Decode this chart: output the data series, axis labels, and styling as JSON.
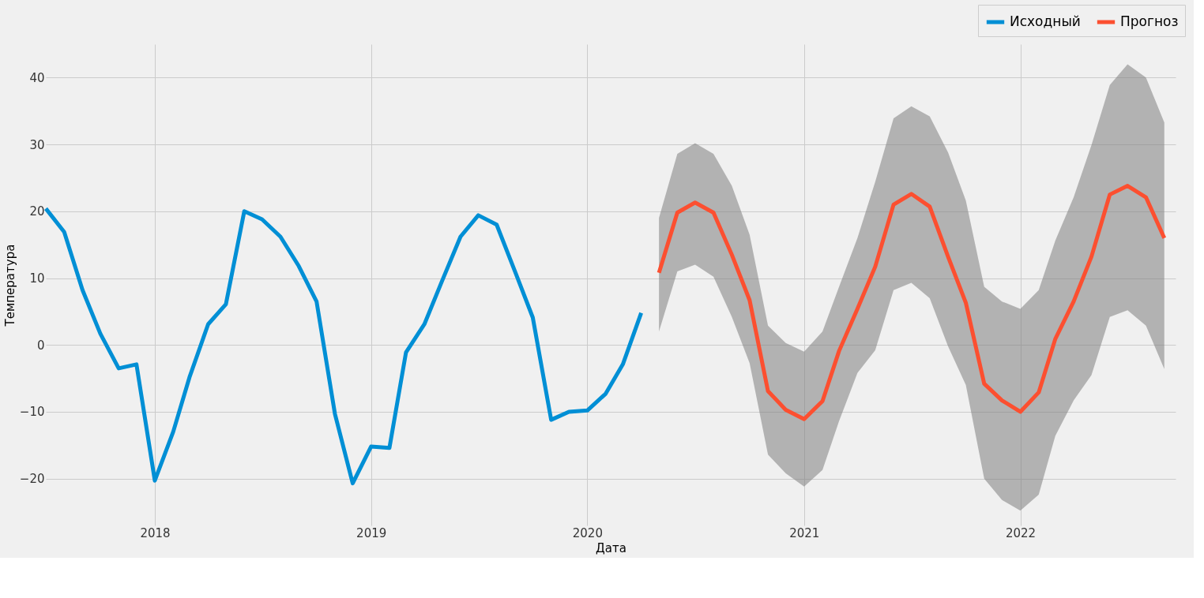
{
  "chart_data": {
    "type": "line",
    "xlabel": "Дата",
    "ylabel": "Температура",
    "xlim": [
      "2017-07-01",
      "2022-09-20"
    ],
    "ylim": [
      -27,
      45
    ],
    "xticks": [
      "2018",
      "2019",
      "2020",
      "2021",
      "2022"
    ],
    "yticks": [
      -20,
      -10,
      0,
      10,
      20,
      30,
      40
    ],
    "grid": true,
    "legend": "top right",
    "marker": "none",
    "line_style": "solid",
    "series": [
      {
        "name": "Исходный",
        "color": "#008fd5",
        "x": [
          "2017-07",
          "2017-08",
          "2017-09",
          "2017-10",
          "2017-11",
          "2017-12",
          "2018-01",
          "2018-02",
          "2018-03",
          "2018-04",
          "2018-05",
          "2018-06",
          "2018-07",
          "2018-08",
          "2018-09",
          "2018-10",
          "2018-11",
          "2018-12",
          "2019-01",
          "2019-02",
          "2019-03",
          "2019-04",
          "2019-05",
          "2019-06",
          "2019-07",
          "2019-08",
          "2019-09",
          "2019-10",
          "2019-11",
          "2019-12",
          "2020-01",
          "2020-02",
          "2020-03",
          "2020-04"
        ],
        "values": [
          20.4,
          16.9,
          8.2,
          1.7,
          -3.5,
          -2.9,
          -20.3,
          -13,
          -4.7,
          3.1,
          6.1,
          20,
          18.8,
          16.2,
          11.8,
          6.5,
          -10.3,
          -20.7,
          -15.2,
          -15.4,
          -1.1,
          3.1,
          9.6,
          16.2,
          19.4,
          18,
          11,
          4.1,
          -11.2,
          -10,
          -9.8,
          -7.3,
          -2.9,
          4.8
        ]
      },
      {
        "name": "Прогноз",
        "color": "#fc4f30",
        "x": [
          "2020-05",
          "2020-06",
          "2020-07",
          "2020-08",
          "2020-09",
          "2020-10",
          "2020-11",
          "2020-12",
          "2021-01",
          "2021-02",
          "2021-03",
          "2021-04",
          "2021-05",
          "2021-06",
          "2021-07",
          "2021-08",
          "2021-09",
          "2021-10",
          "2021-11",
          "2021-12",
          "2022-01",
          "2022-02",
          "2022-03",
          "2022-04",
          "2022-05",
          "2022-06",
          "2022-07",
          "2022-08",
          "2022-09"
        ],
        "values": [
          10.8,
          19.8,
          21.3,
          19.8,
          13.5,
          6.7,
          -6.9,
          -9.7,
          -11.1,
          -8.4,
          -0.9,
          5.4,
          11.7,
          21,
          22.6,
          20.7,
          13.2,
          6.3,
          -5.8,
          -8.3,
          -10,
          -7.1,
          0.9,
          6.5,
          13.2,
          22.5,
          23.8,
          22.1,
          16
        ],
        "lower": [
          2,
          11,
          12,
          10.2,
          4.2,
          -2.7,
          -16.4,
          -19.2,
          -21.2,
          -18.7,
          -11.4,
          -4.2,
          -0.8,
          8.2,
          9.3,
          7,
          -0.2,
          -6,
          -20,
          -23.2,
          -24.8,
          -22.4,
          -13.6,
          -8.3,
          -4.5,
          4.2,
          5.2,
          2.9,
          -3.6
        ],
        "upper": [
          19,
          28.6,
          30.2,
          28.6,
          23.8,
          16.5,
          2.9,
          0.3,
          -1,
          2,
          8.7,
          16,
          24.4,
          33.9,
          35.7,
          34.2,
          28.8,
          21.6,
          8.7,
          6.5,
          5.4,
          8.2,
          15.6,
          22.1,
          29.9,
          38.9,
          42,
          40,
          33.3
        ]
      }
    ]
  }
}
